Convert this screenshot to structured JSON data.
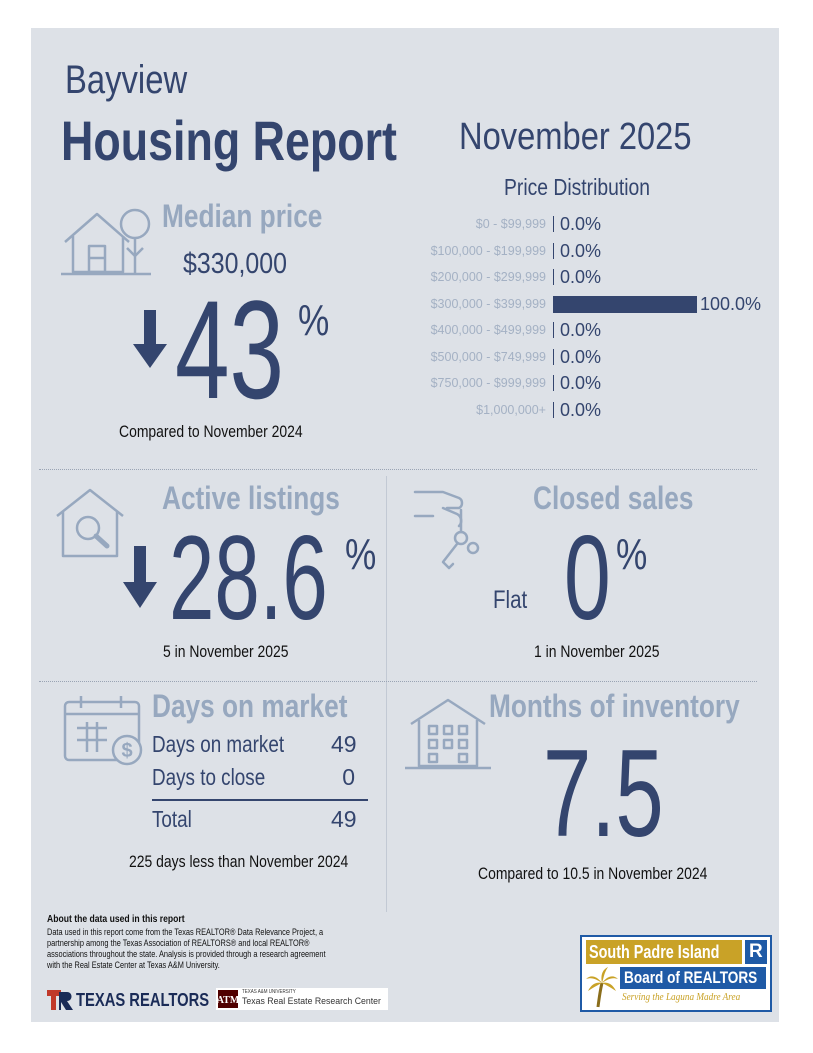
{
  "header": {
    "city": "Bayview",
    "title": "Housing Report",
    "period": "November 2025"
  },
  "median_price": {
    "heading": "Median price",
    "value": "$330,000",
    "change": "43",
    "percent_sign": "%",
    "direction": "down",
    "comparison": "Compared to November 2024"
  },
  "price_distribution": {
    "heading": "Price Distribution",
    "rows": [
      {
        "range": "$0 - $99,999",
        "value": "0.0%",
        "share": 0.0
      },
      {
        "range": "$100,000 - $199,999",
        "value": "0.0%",
        "share": 0.0
      },
      {
        "range": "$200,000 - $299,999",
        "value": "0.0%",
        "share": 0.0
      },
      {
        "range": "$300,000 - $399,999",
        "value": "100.0%",
        "share": 1.0
      },
      {
        "range": "$400,000 - $499,999",
        "value": "0.0%",
        "share": 0.0
      },
      {
        "range": "$500,000 - $749,999",
        "value": "0.0%",
        "share": 0.0
      },
      {
        "range": "$750,000 - $999,999",
        "value": "0.0%",
        "share": 0.0
      },
      {
        "range": "$1,000,000+",
        "value": "0.0%",
        "share": 0.0
      }
    ]
  },
  "active_listings": {
    "heading": "Active listings",
    "change": "28.6",
    "percent_sign": "%",
    "direction": "down",
    "detail": "5 in November 2025"
  },
  "closed_sales": {
    "heading": "Closed sales",
    "trend_label": "Flat",
    "change": "0",
    "percent_sign": "%",
    "detail": "1 in November 2025"
  },
  "days_on_market": {
    "heading": "Days on market",
    "rows": [
      {
        "label": "Days on market",
        "value": "49"
      },
      {
        "label": "Days to close",
        "value": "0"
      }
    ],
    "total_label": "Total",
    "total_value": "49",
    "comparison": "225 days less than November 2024"
  },
  "months_of_inventory": {
    "heading": "Months of inventory",
    "value": "7.5",
    "comparison": "Compared to 10.5 in November 2024"
  },
  "about": {
    "title": "About the data used in this report",
    "lines": [
      "Data used in this report come from the Texas REALTOR® Data Relevance Project, a",
      "partnership among the Texas Association of REALTORS® and local REALTOR®",
      "associations throughout the state. Analysis is provided through a research agreement",
      "with the Real Estate Center at Texas A&M University."
    ]
  },
  "logos": {
    "texas_realtors": "TEXAS REALTORS",
    "tamu_small": "TEXAS A&M UNIVERSITY",
    "tamu_center": "Texas Real Estate Research Center",
    "spi_line1": "South Padre Island",
    "spi_line2": "Board of REALTORS",
    "spi_tagline": "Serving the Laguna Madre Area"
  },
  "colors": {
    "navy": "#34456e",
    "muted": "#97a8bf",
    "panel": "#dde1e7",
    "gold": "#c9a227",
    "blue": "#1f5aa6"
  }
}
